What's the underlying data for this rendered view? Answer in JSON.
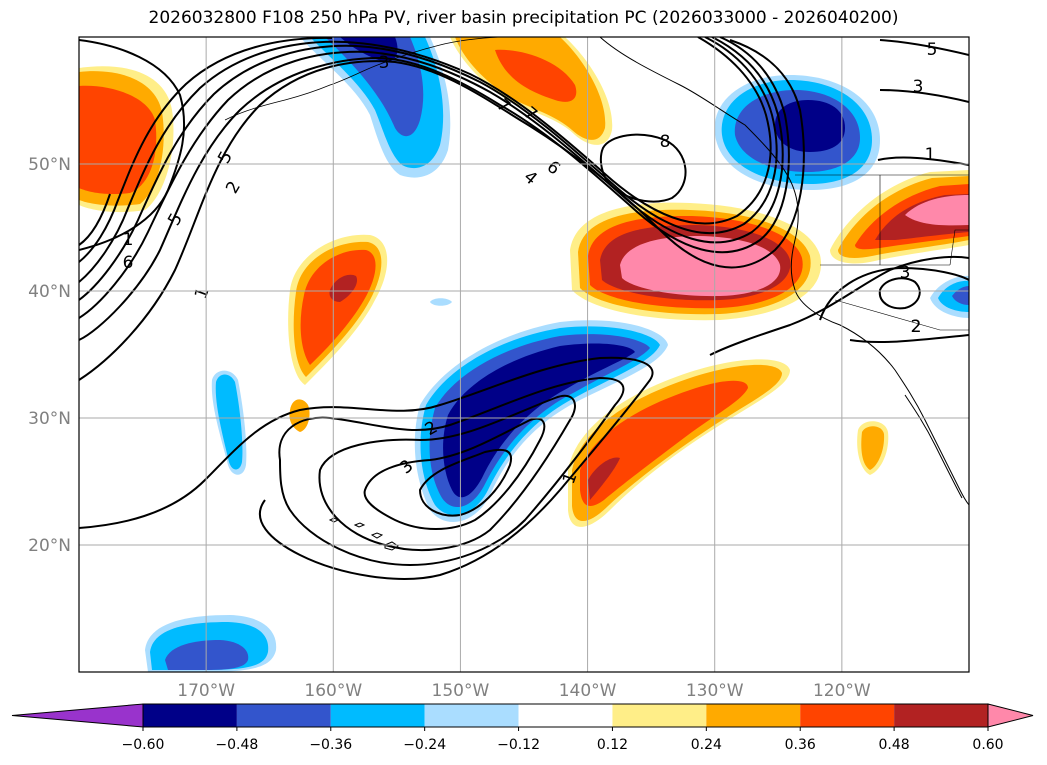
{
  "title": "2026032800 F108 250 hPa PV, river basin precipitation PC (2026033000 - 2026040200)",
  "map": {
    "lon_range": [
      -180,
      -110
    ],
    "lat_range": [
      10,
      60
    ],
    "lat_ticks": [
      "50°N",
      "40°N",
      "30°N",
      "20°N"
    ],
    "lon_ticks": [
      "170°W",
      "160°W",
      "150°W",
      "140°W",
      "130°W",
      "120°W"
    ],
    "contour_labels": [
      "1",
      "2",
      "3",
      "4",
      "5",
      "6",
      "7",
      "8",
      "1",
      "2",
      "3",
      "5",
      "6",
      "7",
      "1",
      "3",
      "2",
      "3",
      "1",
      "2",
      "3"
    ]
  },
  "colorbar": {
    "ticks": [
      "−0.60",
      "−0.48",
      "−0.36",
      "−0.24",
      "−0.12",
      "0.12",
      "0.24",
      "0.36",
      "0.48",
      "0.60"
    ],
    "colors": [
      "#9933cc",
      "#000088",
      "#3355cc",
      "#00bbff",
      "#aaddff",
      "#ffffff",
      "#ffee88",
      "#ffaa00",
      "#ff4400",
      "#b22222",
      "#ff88aa"
    ]
  }
}
